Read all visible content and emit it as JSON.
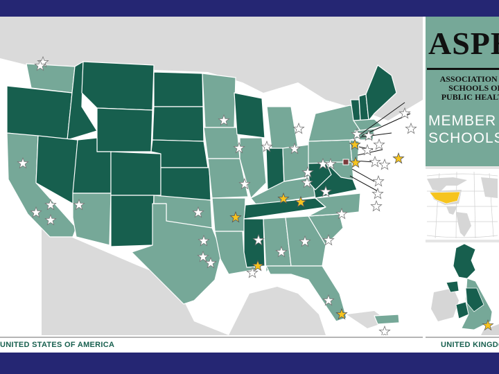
{
  "sidebar": {
    "logo": "ASPH",
    "logo_subtitle": [
      "ASSOCIATION OF",
      "SCHOOLS OF",
      "PUBLIC HEALTH"
    ],
    "title_lines": [
      "MEMBER",
      "SCHOOLS"
    ]
  },
  "captions": {
    "us": "UNITED STATES OF AMERICA",
    "uk": "UNITED KINGDOM"
  },
  "colors": {
    "frame": "#252673",
    "member_state": "#175f4e",
    "other_state": "#76a898",
    "background_land": "#dadada",
    "star_highlight": "#f6c41f",
    "star_plain": "#ffffff",
    "caption": "#175f4e"
  },
  "legend_meaning": {
    "white_star": "member school",
    "gold_star": "member school (highlighted)"
  }
}
